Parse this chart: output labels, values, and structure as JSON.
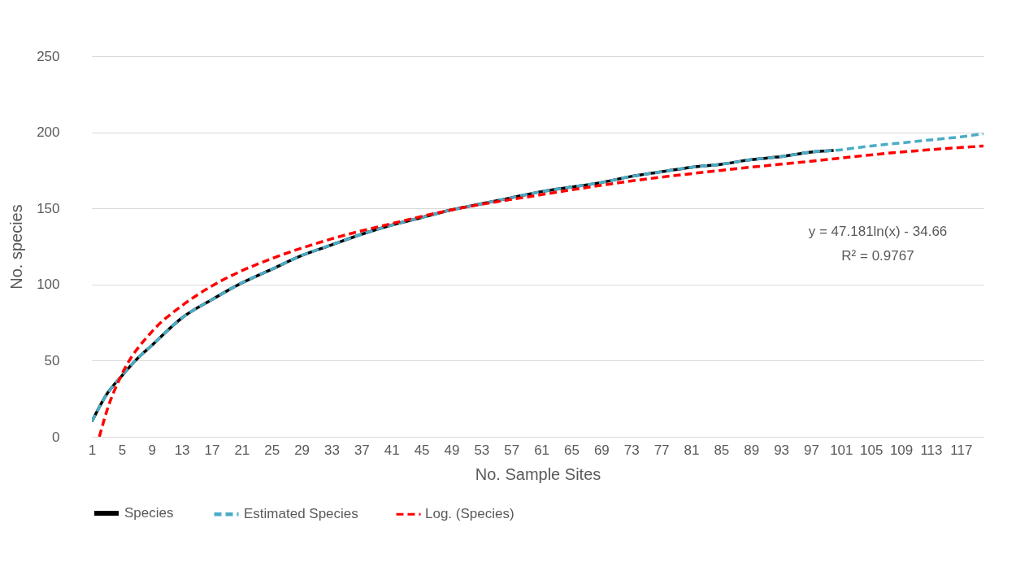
{
  "chart_data": {
    "type": "line",
    "xlabel": "No. Sample Sites",
    "ylabel": "No. species",
    "xlim": [
      1,
      120
    ],
    "xticks": [
      1,
      5,
      9,
      13,
      17,
      21,
      25,
      29,
      33,
      37,
      41,
      45,
      49,
      53,
      57,
      61,
      65,
      69,
      73,
      77,
      81,
      85,
      89,
      93,
      97,
      101,
      105,
      109,
      113,
      117
    ],
    "ylim": [
      0,
      250
    ],
    "yticks": [
      0,
      50,
      100,
      150,
      200,
      250
    ],
    "grid": "y",
    "legend": "bottom",
    "series": [
      {
        "name": "Species",
        "color": "#000000",
        "line_style": "solid",
        "x": [
          1,
          3,
          5,
          7,
          9,
          13,
          17,
          21,
          25,
          29,
          33,
          37,
          41,
          45,
          49,
          53,
          57,
          61,
          65,
          69,
          73,
          77,
          81,
          85,
          89,
          93,
          97,
          100
        ],
        "values": [
          10,
          28,
          40,
          51,
          60,
          78,
          90,
          101,
          110,
          119,
          126,
          133,
          139,
          144,
          149,
          153,
          157,
          161,
          164,
          167,
          171,
          174,
          177,
          179,
          182,
          184,
          187,
          188
        ]
      },
      {
        "name": "Estimated Species",
        "color": "#4bacc6",
        "line_style": "dashed",
        "x": [
          1,
          3,
          5,
          7,
          9,
          13,
          17,
          21,
          25,
          29,
          33,
          37,
          41,
          45,
          49,
          53,
          57,
          61,
          65,
          69,
          73,
          77,
          81,
          85,
          89,
          93,
          97,
          100,
          105,
          109,
          113,
          117,
          120
        ],
        "values": [
          10,
          28,
          40,
          51,
          60,
          78,
          90,
          101,
          110,
          119,
          126,
          133,
          139,
          144,
          149,
          153,
          157,
          161,
          164,
          167,
          171,
          174,
          177,
          179,
          182,
          184,
          187,
          188,
          191,
          193,
          195,
          197,
          199
        ]
      },
      {
        "name": "Log. (Species)",
        "color": "#ff0000",
        "line_style": "dashed",
        "x": [
          2,
          3,
          5,
          9,
          13,
          17,
          21,
          25,
          33,
          41,
          49,
          61,
          73,
          85,
          97,
          109,
          120
        ],
        "values": [
          0,
          17,
          41,
          69,
          86,
          99,
          109,
          117,
          130,
          140,
          149,
          159,
          168,
          175,
          181,
          187,
          191
        ]
      }
    ],
    "annotations": [
      "y = 47.181ln(x) - 34.66",
      "R² = 0.9767"
    ]
  }
}
